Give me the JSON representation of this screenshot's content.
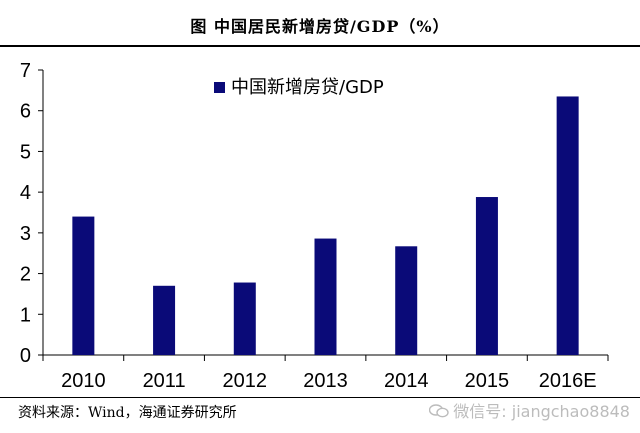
{
  "header": {
    "title": "图    中国居民新增房贷/GDP（%）"
  },
  "footer": {
    "source": "资料来源：Wind，海通证券研究所",
    "watermark": "微信号: jiangchao8848"
  },
  "colors": {
    "bar": "#0a0a78",
    "axis": "#000000"
  },
  "chart_data": {
    "type": "bar",
    "title": "图    中国居民新增房贷/GDP（%）",
    "categories": [
      "2010",
      "2011",
      "2012",
      "2013",
      "2014",
      "2015",
      "2016E"
    ],
    "series": [
      {
        "name": "中国新增房贷/GDP",
        "values": [
          3.4,
          1.7,
          1.78,
          2.86,
          2.67,
          3.88,
          6.35
        ]
      }
    ],
    "ylim": [
      0,
      7
    ],
    "yticks": [
      0,
      1,
      2,
      3,
      4,
      5,
      6,
      7
    ],
    "grid": false,
    "legend": "top-center"
  }
}
